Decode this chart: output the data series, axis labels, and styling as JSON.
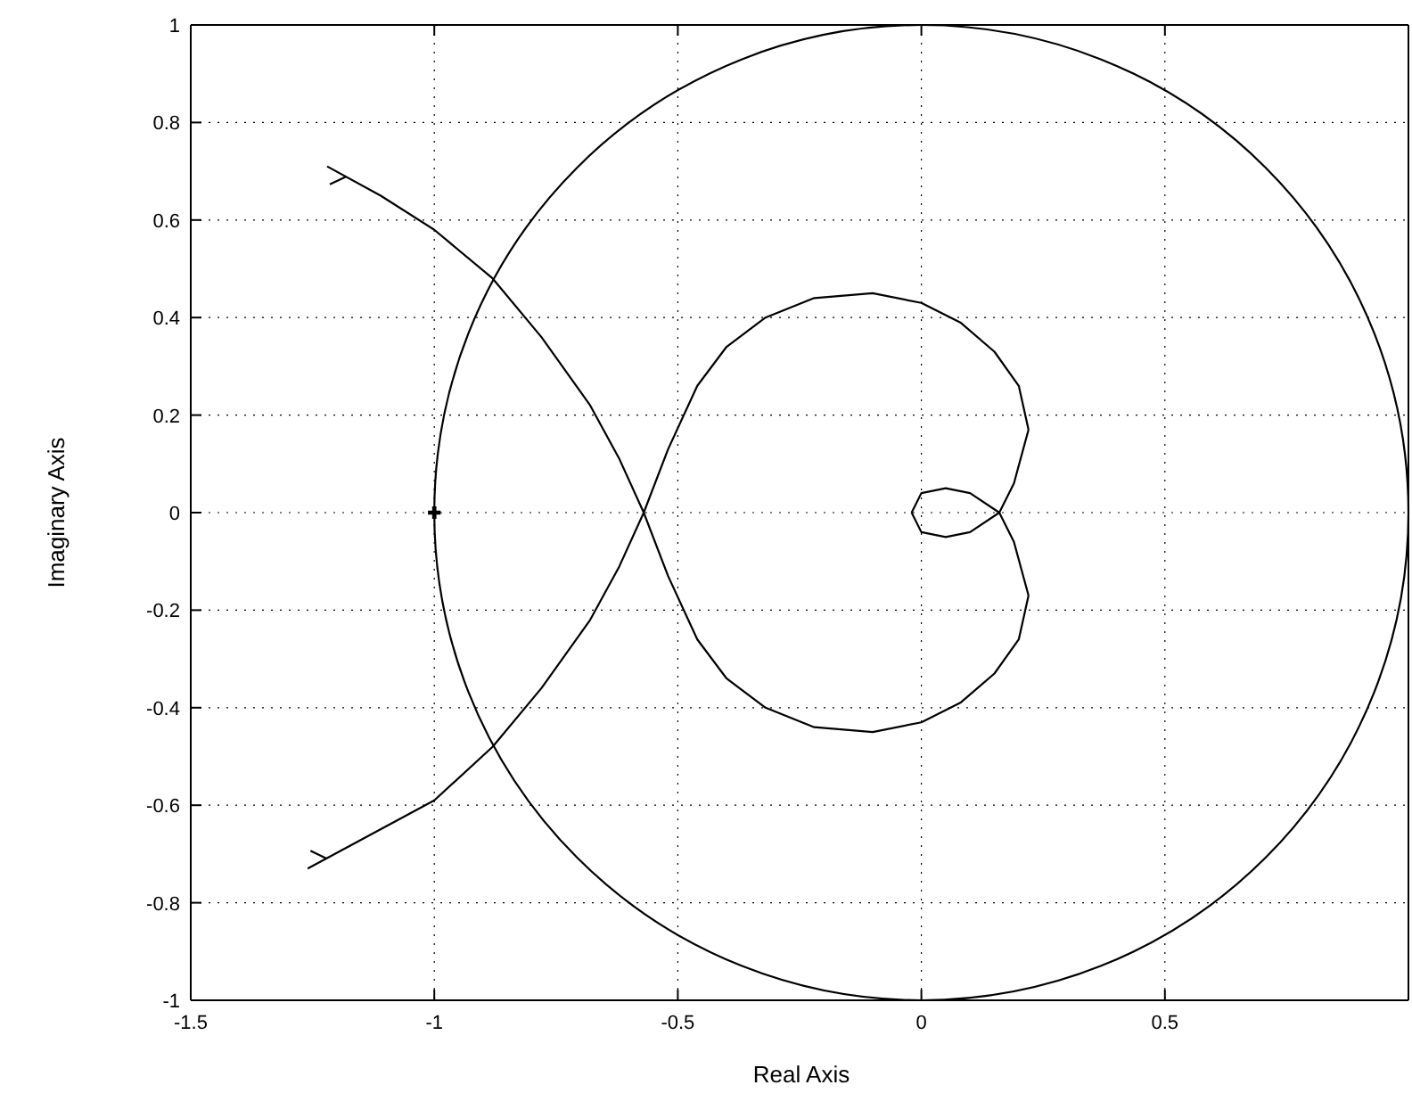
{
  "chart_data": {
    "type": "line",
    "xlabel": "Real Axis",
    "ylabel": "Imaginary Axis",
    "xlim": [
      -1.5,
      1
    ],
    "ylim": [
      -1,
      1
    ],
    "xticks": [
      -1.5,
      -1,
      -0.5,
      0,
      0.5
    ],
    "yticks": [
      -1,
      -0.8,
      -0.6,
      -0.4,
      -0.2,
      0,
      0.2,
      0.4,
      0.6,
      0.8,
      1
    ],
    "grid": true,
    "line_style": "solid",
    "series": [
      {
        "color": "#000000",
        "x": [
          -1.26,
          -1.13,
          -1,
          -0.88,
          -0.78,
          -0.68,
          -0.62,
          -0.57,
          -0.52,
          -0.46,
          -0.4,
          -0.32,
          -0.22,
          -0.1,
          0,
          0.08,
          0.15,
          0.2,
          0.22
        ],
        "values": [
          -0.73,
          -0.66,
          -0.59,
          -0.48,
          -0.36,
          -0.22,
          -0.11,
          0,
          0.13,
          0.26,
          0.34,
          0.4,
          0.44,
          0.45,
          0.43,
          0.39,
          0.33,
          0.26,
          0.17
        ]
      },
      {
        "color": "#000000",
        "x": [
          0.22,
          0.19,
          0.16,
          0.1,
          0.05,
          0,
          -0.02
        ],
        "values": [
          0.17,
          0.06,
          0,
          -0.04,
          -0.05,
          -0.04,
          0
        ]
      },
      {
        "color": "#000000",
        "x": [
          -0.02,
          0,
          0.05,
          0.1,
          0.16,
          0.19,
          0.22
        ],
        "values": [
          0,
          0.04,
          0.05,
          0.04,
          0,
          -0.06,
          -0.17
        ]
      },
      {
        "color": "#000000",
        "x": [
          0.22,
          0.2,
          0.15,
          0.08,
          0,
          -0.1,
          -0.22,
          -0.32,
          -0.4,
          -0.46,
          -0.52,
          -0.57,
          -0.62,
          -0.68,
          -0.78,
          -0.88,
          -1,
          -1.11,
          -1.22
        ],
        "values": [
          -0.17,
          -0.26,
          -0.33,
          -0.39,
          -0.43,
          -0.45,
          -0.44,
          -0.4,
          -0.34,
          -0.26,
          -0.13,
          0,
          0.11,
          0.22,
          0.36,
          0.48,
          0.58,
          0.65,
          0.71
        ]
      },
      {
        "type": "scatter",
        "marker": "cross",
        "color": "#000000",
        "x": [
          -1
        ],
        "values": [
          0
        ]
      }
    ]
  }
}
